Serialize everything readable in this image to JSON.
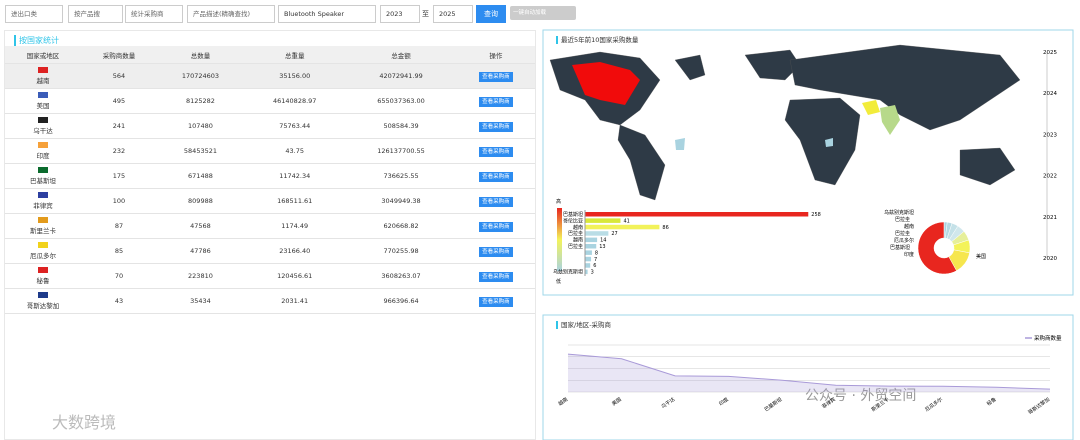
{
  "filters": {
    "trade_type": "进出口类",
    "search_mode": "按产品搜",
    "stat_mode": "统计采购商",
    "desc_mode": "产品描述(精确查找)",
    "keyword": "Bluetooth Speaker",
    "year_from": "2023",
    "to": "至",
    "year_to": "2025",
    "query": "查询",
    "toggle": "一键自动加载"
  },
  "section_title": "按国家统计",
  "table": {
    "headers": [
      "国家或地区",
      "采购商数量",
      "总数量",
      "总重量",
      "总金额",
      "操作"
    ],
    "rows": [
      [
        "越南",
        "564",
        "170724603",
        "35156.00",
        "42072941.99"
      ],
      [
        "美国",
        "495",
        "8125282",
        "46140828.97",
        "655037363.00"
      ],
      [
        "乌干达",
        "241",
        "107480",
        "75763.44",
        "508584.39"
      ],
      [
        "印度",
        "232",
        "58453521",
        "43.75",
        "126137700.55"
      ],
      [
        "巴基斯坦",
        "175",
        "671488",
        "11742.34",
        "736625.55"
      ],
      [
        "菲律宾",
        "100",
        "809988",
        "168511.61",
        "3049949.38"
      ],
      [
        "斯里兰卡",
        "87",
        "47568",
        "1174.49",
        "620668.82"
      ],
      [
        "厄瓜多尔",
        "85",
        "47786",
        "23166.40",
        "770255.98"
      ],
      [
        "秘鲁",
        "70",
        "223810",
        "120456.61",
        "3608263.07"
      ],
      [
        "哥斯达黎加",
        "43",
        "35434",
        "2031.41",
        "966396.64"
      ]
    ],
    "action": "查看采购商"
  },
  "map_panel": {
    "title": "最近5年前10国家采购数量",
    "timeline": [
      "2025",
      "2024",
      "2023",
      "2022",
      "2021",
      "2020"
    ],
    "visual_map": {
      "high": "高",
      "low": "低"
    }
  },
  "chart_data": [
    {
      "type": "bar",
      "categories": [
        "巴基斯坦",
        "哥伦比亚",
        "越南",
        "巴拉圭",
        "越南",
        "巴拉圭",
        null,
        null,
        null,
        "乌兹别克斯坦"
      ],
      "values": [
        258,
        41,
        86,
        27,
        14,
        13,
        8,
        7,
        6,
        3
      ],
      "colors": [
        "#e8261f",
        "#d8e83a",
        "#f2f25a",
        "#b9dde6",
        "#a9d3e0",
        "#a9d3e0",
        "#a9d3e0",
        "#a9d3e0",
        "#a9d3e0",
        "#a9d3e0"
      ],
      "xlim": [
        0,
        260
      ]
    },
    {
      "type": "pie",
      "categories": [
        "乌兹别克斯坦",
        "巴拉圭",
        "越南",
        "巴拉圭",
        "厄瓜多尔",
        "巴基斯坦",
        "印度",
        "美国"
      ],
      "values": [
        2,
        3,
        4,
        5,
        6,
        8,
        14,
        58
      ],
      "colors": [
        "#a9d3e0",
        "#b5d9e3",
        "#c4e1e8",
        "#d0e7ec",
        "#e6ef9a",
        "#f3f35a",
        "#f6e64e",
        "#e8261f"
      ]
    },
    {
      "type": "line",
      "title": "国家/地区-采购商",
      "legend": "采购商数量",
      "series": [
        {
          "name": "采购商数量",
          "color": "#a99ad8",
          "values": [
            564,
            495,
            241,
            232,
            175,
            100,
            87,
            85,
            70,
            43
          ]
        }
      ],
      "categories": [
        "越南",
        "美国",
        "乌干达",
        "印度",
        "巴基斯坦",
        "菲律宾",
        "斯里兰卡",
        "厄瓜多尔",
        "秘鲁",
        "哥斯达黎加"
      ],
      "ylim": [
        0,
        700
      ]
    }
  ],
  "watermarks": [
    "公众号 · 外贸空间",
    "大数跨境"
  ]
}
